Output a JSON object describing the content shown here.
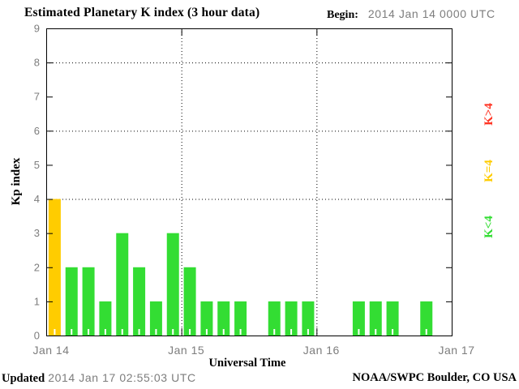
{
  "title": "Estimated Planetary K index (3 hour data)",
  "begin_label": "Begin:",
  "begin_value": "2014 Jan 14 0000 UTC",
  "footer": {
    "updated_label": "Updated",
    "updated_value": "2014 Jan 17 02:55:03 UTC",
    "source": "NOAA/SWPC Boulder, CO USA"
  },
  "colors": {
    "green": "#33dd33",
    "yellow": "#ffcc00",
    "red": "#ff3322",
    "axis_text": "#7d7d7d"
  },
  "legend": [
    {
      "label": "K>4",
      "color": "red"
    },
    {
      "label": "K=4",
      "color": "yellow"
    },
    {
      "label": "K<4",
      "color": "green"
    }
  ],
  "chart_data": {
    "type": "bar",
    "title": "Estimated Planetary K index (3 hour data)",
    "xlabel": "Universal Time",
    "ylabel": "Kp index",
    "ylim": [
      0,
      9
    ],
    "yticks": [
      0,
      1,
      2,
      3,
      4,
      5,
      6,
      7,
      8,
      9
    ],
    "dotted_hlines": [
      4,
      6,
      8
    ],
    "x_day_labels": [
      "Jan 14",
      "Jan 15",
      "Jan 16",
      "Jan 17"
    ],
    "bar_interval_hours": 3,
    "bars_per_day": 8,
    "values": [
      4,
      2,
      2,
      1,
      3,
      2,
      1,
      3,
      2,
      1,
      1,
      1,
      0,
      1,
      1,
      1,
      0,
      0,
      1,
      1,
      1,
      0,
      1,
      0
    ],
    "color_rule": "green if K<4, yellow if K=4, red if K>4",
    "grid": "dotted horizontal at 4/6/8, dotted vertical at day boundaries",
    "legend_position": "right, rotated"
  }
}
